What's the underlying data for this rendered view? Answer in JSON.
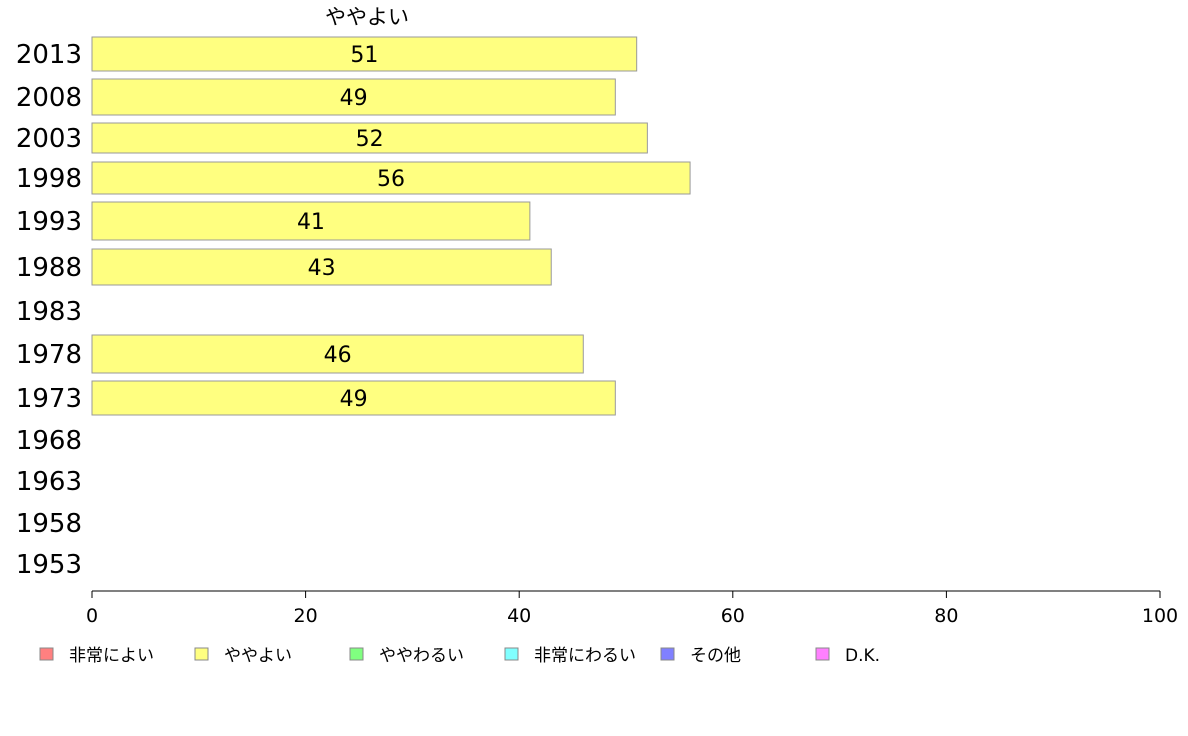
{
  "chart_data": {
    "type": "bar",
    "orientation": "horizontal",
    "column_title": "ややよい",
    "categories": [
      "2013",
      "2008",
      "2003",
      "1998",
      "1993",
      "1988",
      "1983",
      "1978",
      "1973",
      "1968",
      "1963",
      "1958",
      "1953"
    ],
    "series": [
      {
        "name": "ややよい",
        "color": "#ffff80",
        "values": [
          51,
          49,
          52,
          56,
          41,
          43,
          null,
          46,
          49,
          null,
          null,
          null,
          null
        ]
      }
    ],
    "xlim": [
      0,
      100
    ],
    "xticks": [
      "0",
      "20",
      "40",
      "60",
      "80",
      "100"
    ],
    "legend": {
      "placement": "bottom",
      "items": [
        {
          "label": "非常によい",
          "color": "#ff8080"
        },
        {
          "label": "ややよい",
          "color": "#ffff80"
        },
        {
          "label": "ややわるい",
          "color": "#80ff80"
        },
        {
          "label": "非常にわるい",
          "color": "#80ffff"
        },
        {
          "label": "その他",
          "color": "#8080ff"
        },
        {
          "label": "D.K.",
          "color": "#ff80ff"
        }
      ]
    }
  }
}
